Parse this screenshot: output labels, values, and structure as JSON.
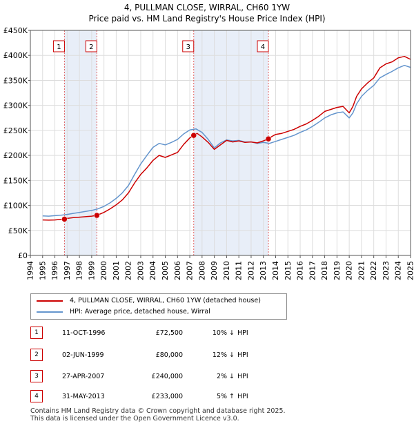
{
  "title_line1": "4, PULLMAN CLOSE, WIRRAL, CH60 1YW",
  "title_line2": "Price paid vs. HM Land Registry's House Price Index (HPI)",
  "colors": {
    "property": "#cc0000",
    "hpi": "#6495cd",
    "shade": "#e8eef8",
    "grid": "#dddddd",
    "marker_border": "#cc0000",
    "vline": "#e06060"
  },
  "chart_data": {
    "type": "line",
    "title": "Price paid vs. HM Land Registry's House Price Index (HPI)",
    "xlabel": "",
    "ylabel": "",
    "xlim": [
      1994,
      2025
    ],
    "ylim": [
      0,
      450000
    ],
    "x_ticks": [
      1994,
      1995,
      1996,
      1997,
      1998,
      1999,
      2000,
      2001,
      2002,
      2003,
      2004,
      2005,
      2006,
      2007,
      2008,
      2009,
      2010,
      2011,
      2012,
      2013,
      2014,
      2015,
      2016,
      2017,
      2018,
      2019,
      2020,
      2021,
      2022,
      2023,
      2024,
      2025
    ],
    "y_ticks": [
      0,
      50000,
      100000,
      150000,
      200000,
      250000,
      300000,
      350000,
      400000,
      450000
    ],
    "y_tick_labels": [
      "£0",
      "£50K",
      "£100K",
      "£150K",
      "£200K",
      "£250K",
      "£300K",
      "£350K",
      "£400K",
      "£450K"
    ],
    "shaded_ranges": [
      [
        1996.78,
        1999.42
      ],
      [
        2007.32,
        2013.41
      ]
    ],
    "series": [
      {
        "name": "4, PULLMAN CLOSE, WIRRAL, CH60 1YW (detached house)",
        "x": [
          1995,
          1995.5,
          1996,
          1996.5,
          1996.78,
          1997,
          1997.5,
          1998,
          1998.5,
          1999,
          1999.42,
          2000,
          2000.5,
          2001,
          2001.5,
          2002,
          2002.5,
          2003,
          2003.5,
          2004,
          2004.5,
          2005,
          2005.5,
          2006,
          2006.5,
          2007,
          2007.32,
          2007.6,
          2008,
          2008.5,
          2009,
          2009.5,
          2010,
          2010.5,
          2011,
          2011.5,
          2012,
          2012.5,
          2013,
          2013.41,
          2013.7,
          2014,
          2014.5,
          2015,
          2015.5,
          2016,
          2016.5,
          2017,
          2017.5,
          2018,
          2018.5,
          2019,
          2019.5,
          2020,
          2020.3,
          2020.6,
          2021,
          2021.5,
          2022,
          2022.5,
          2023,
          2023.5,
          2024,
          2024.5,
          2025
        ],
        "values": [
          71000,
          70500,
          71000,
          72000,
          72500,
          74000,
          75500,
          76500,
          77500,
          78500,
          80000,
          86000,
          93000,
          101000,
          111000,
          125000,
          145000,
          162000,
          175000,
          190000,
          200000,
          196000,
          201000,
          206000,
          222000,
          235000,
          240000,
          244000,
          237000,
          226000,
          212000,
          221000,
          230000,
          227000,
          229000,
          226000,
          227000,
          225000,
          229000,
          233000,
          238000,
          242000,
          244000,
          248000,
          252000,
          258000,
          263000,
          270000,
          278000,
          288000,
          292000,
          296000,
          298000,
          285000,
          298000,
          318000,
          333000,
          345000,
          355000,
          375000,
          383000,
          387000,
          395000,
          398000,
          392000
        ]
      },
      {
        "name": "HPI: Average price, detached house, Wirral",
        "x": [
          1995,
          1995.5,
          1996,
          1996.5,
          1997,
          1997.5,
          1998,
          1998.5,
          1999,
          1999.5,
          2000,
          2000.5,
          2001,
          2001.5,
          2002,
          2002.5,
          2003,
          2003.5,
          2004,
          2004.5,
          2005,
          2005.5,
          2006,
          2006.5,
          2007,
          2007.5,
          2008,
          2008.5,
          2009,
          2009.5,
          2010,
          2010.5,
          2011,
          2011.5,
          2012,
          2012.5,
          2013,
          2013.5,
          2014,
          2014.5,
          2015,
          2015.5,
          2016,
          2016.5,
          2017,
          2017.5,
          2018,
          2018.5,
          2019,
          2019.5,
          2020,
          2020.3,
          2020.6,
          2021,
          2021.5,
          2022,
          2022.5,
          2023,
          2023.5,
          2024,
          2024.5,
          2025
        ],
        "values": [
          79000,
          78500,
          79500,
          80500,
          82000,
          84000,
          86000,
          88000,
          90000,
          93000,
          98000,
          105000,
          114000,
          125000,
          140000,
          162000,
          183000,
          200000,
          216000,
          224000,
          221000,
          226000,
          232000,
          243000,
          251000,
          253000,
          246000,
          232000,
          215000,
          225000,
          231000,
          229000,
          230000,
          227000,
          227000,
          224000,
          226000,
          224000,
          228000,
          232000,
          236000,
          240000,
          246000,
          251000,
          258000,
          266000,
          275000,
          281000,
          285000,
          287000,
          275000,
          285000,
          303000,
          318000,
          330000,
          340000,
          355000,
          362000,
          368000,
          375000,
          380000,
          376000
        ]
      }
    ],
    "sales": [
      {
        "label": "1",
        "x": 1996.78,
        "value": 72500
      },
      {
        "label": "2",
        "x": 1999.42,
        "value": 80000
      },
      {
        "label": "3",
        "x": 2007.32,
        "value": 240000
      },
      {
        "label": "4",
        "x": 2013.41,
        "value": 233000
      }
    ]
  },
  "legend": {
    "property_label": "4, PULLMAN CLOSE, WIRRAL, CH60 1YW (detached house)",
    "hpi_label": "HPI: Average price, detached house, Wirral"
  },
  "transactions": [
    {
      "num": "1",
      "date": "11-OCT-1996",
      "price": "£72,500",
      "pct": "10% ↓",
      "hpi": "HPI"
    },
    {
      "num": "2",
      "date": "02-JUN-1999",
      "price": "£80,000",
      "pct": "12% ↓",
      "hpi": "HPI"
    },
    {
      "num": "3",
      "date": "27-APR-2007",
      "price": "£240,000",
      "pct": "2% ↓",
      "hpi": "HPI"
    },
    {
      "num": "4",
      "date": "31-MAY-2013",
      "price": "£233,000",
      "pct": "5% ↑",
      "hpi": "HPI"
    }
  ],
  "footer_line1": "Contains HM Land Registry data © Crown copyright and database right 2025.",
  "footer_line2": "This data is licensed under the Open Government Licence v3.0."
}
